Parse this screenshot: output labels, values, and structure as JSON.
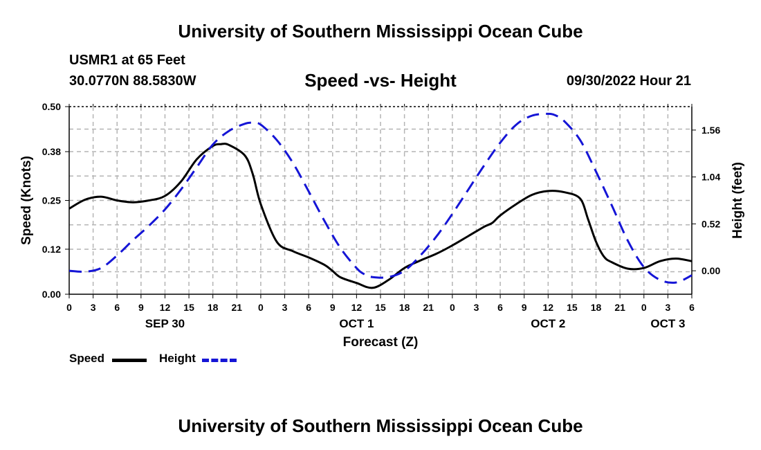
{
  "header": {
    "title": "University of Southern Mississippi Ocean Cube",
    "station": "USMR1 at 65 Feet",
    "coordinates": "30.0770N  88.5830W",
    "datetime": "09/30/2022 Hour 21"
  },
  "footer": {
    "title": "University of Southern Mississippi Ocean Cube"
  },
  "legend": {
    "speed_label": "Speed",
    "height_label": "Height"
  },
  "colors": {
    "speed": "#000000",
    "height": "#1515d6",
    "grid": "#b4b4b4"
  },
  "chart_data": {
    "type": "line",
    "title": "Speed -vs- Height",
    "xlabel": "Forecast (Z)",
    "ylabel": "Speed (Knots)",
    "y2label": "Height (feet)",
    "x_range_hours": [
      0,
      78
    ],
    "ylim": [
      0,
      0.5
    ],
    "y2lim": [
      -0.26,
      1.82
    ],
    "y_ticks": [
      "0.00",
      "0.12",
      "0.25",
      "0.38",
      "0.50"
    ],
    "y2_ticks": [
      "0.00",
      "0.52",
      "1.04",
      "1.56"
    ],
    "x_tick_labels": [
      "0",
      "3",
      "6",
      "9",
      "12",
      "15",
      "18",
      "21",
      "0",
      "3",
      "6",
      "9",
      "12",
      "15",
      "18",
      "21",
      "0",
      "3",
      "6",
      "9",
      "12",
      "15",
      "18",
      "21",
      "0",
      "3",
      "6"
    ],
    "day_labels": [
      {
        "label": "SEP 30",
        "hour": 12
      },
      {
        "label": "OCT 1",
        "hour": 36
      },
      {
        "label": "OCT 2",
        "hour": 60
      },
      {
        "label": "OCT 3",
        "hour": 75
      }
    ],
    "grid": true,
    "series": [
      {
        "name": "Speed",
        "axis": "left",
        "style": "solid",
        "x": [
          0,
          2,
          4,
          6,
          8,
          10,
          12,
          14,
          16,
          18,
          19,
          20,
          22,
          23,
          24,
          26,
          28,
          30,
          32,
          33,
          34,
          36,
          38,
          40,
          42,
          44,
          46,
          48,
          50,
          52,
          53,
          54,
          56,
          58,
          60,
          62,
          64,
          65,
          66,
          67,
          68,
          70,
          72,
          74,
          76,
          78
        ],
        "y": [
          0.228,
          0.252,
          0.26,
          0.25,
          0.245,
          0.25,
          0.262,
          0.3,
          0.36,
          0.395,
          0.4,
          0.398,
          0.37,
          0.32,
          0.24,
          0.14,
          0.115,
          0.098,
          0.078,
          0.062,
          0.045,
          0.03,
          0.017,
          0.038,
          0.07,
          0.09,
          0.108,
          0.13,
          0.155,
          0.18,
          0.19,
          0.21,
          0.24,
          0.265,
          0.275,
          0.272,
          0.255,
          0.2,
          0.14,
          0.1,
          0.085,
          0.068,
          0.07,
          0.088,
          0.095,
          0.088
        ]
      },
      {
        "name": "Height",
        "axis": "right",
        "style": "dashed",
        "x": [
          0,
          2,
          4,
          6,
          8,
          10,
          12,
          14,
          16,
          18,
          20,
          22,
          23,
          24,
          26,
          28,
          30,
          32,
          34,
          36,
          37,
          38,
          40,
          42,
          44,
          46,
          48,
          50,
          52,
          54,
          56,
          58,
          60,
          61,
          62,
          64,
          66,
          68,
          70,
          72,
          74,
          76,
          78
        ],
        "y": [
          0.0,
          -0.01,
          0.03,
          0.17,
          0.34,
          0.5,
          0.68,
          0.9,
          1.15,
          1.4,
          1.55,
          1.63,
          1.64,
          1.62,
          1.45,
          1.2,
          0.88,
          0.55,
          0.25,
          0.03,
          -0.04,
          -0.07,
          -0.07,
          0.0,
          0.17,
          0.38,
          0.63,
          0.9,
          1.17,
          1.42,
          1.62,
          1.72,
          1.74,
          1.72,
          1.66,
          1.45,
          1.1,
          0.72,
          0.33,
          0.04,
          -0.1,
          -0.13,
          -0.05
        ]
      }
    ]
  }
}
